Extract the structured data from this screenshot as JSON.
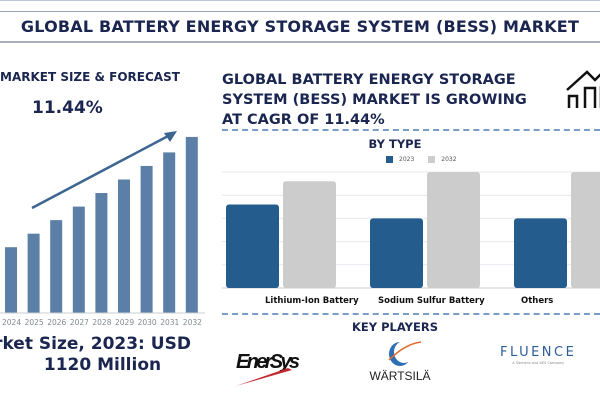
{
  "header": {
    "title": "GLOBAL BATTERY ENERGY STORAGE SYSTEM (BESS) MARKET"
  },
  "left_panel": {
    "section_title": "MARKET SIZE & FORECAST",
    "cagr_label": "11.44%",
    "market_size_line1": "rket Size, 2023: USD",
    "market_size_line2": "1120 Million",
    "bar_color": "#5b7fa6"
  },
  "right_panel": {
    "headline": "GLOBAL BATTERY ENERGY STORAGE SYSTEM (BESS) MARKET IS GROWING AT CAGR OF 11.44%",
    "by_type_title": "BY TYPE",
    "legend": [
      {
        "label": "2023",
        "color": "#255c8e"
      },
      {
        "label": "2032",
        "color": "#cccccc"
      }
    ],
    "key_players_title": "KEY PLAYERS",
    "key_players": [
      {
        "name": "EnerSys"
      },
      {
        "name": "WÄRTSILÄ"
      },
      {
        "name": "FLUENCE",
        "tagline": "A Siemens and AES Company"
      }
    ],
    "icon": "house-chart-icon"
  },
  "chart_data": [
    {
      "type": "bar",
      "title": "MARKET SIZE & FORECAST",
      "categories": [
        "2024",
        "2025",
        "2026",
        "2027",
        "2028",
        "2029",
        "2030",
        "2031",
        "2032"
      ],
      "values": [
        34,
        41,
        48,
        55,
        62,
        69,
        76,
        83,
        91
      ],
      "annotation": "11.44%",
      "trend_arrow": true,
      "xlabel": "",
      "ylabel": "",
      "grid": false
    },
    {
      "type": "bar",
      "title": "BY TYPE",
      "categories": [
        "Lithium-Ion Battery",
        "Sodium Sulfur Battery",
        "Others"
      ],
      "series": [
        {
          "name": "2023",
          "values": [
            72,
            60,
            60
          ]
        },
        {
          "name": "2032",
          "values": [
            92,
            100,
            100
          ]
        }
      ],
      "ylim": [
        0,
        100
      ],
      "grid": true,
      "legend_position": "top"
    }
  ]
}
